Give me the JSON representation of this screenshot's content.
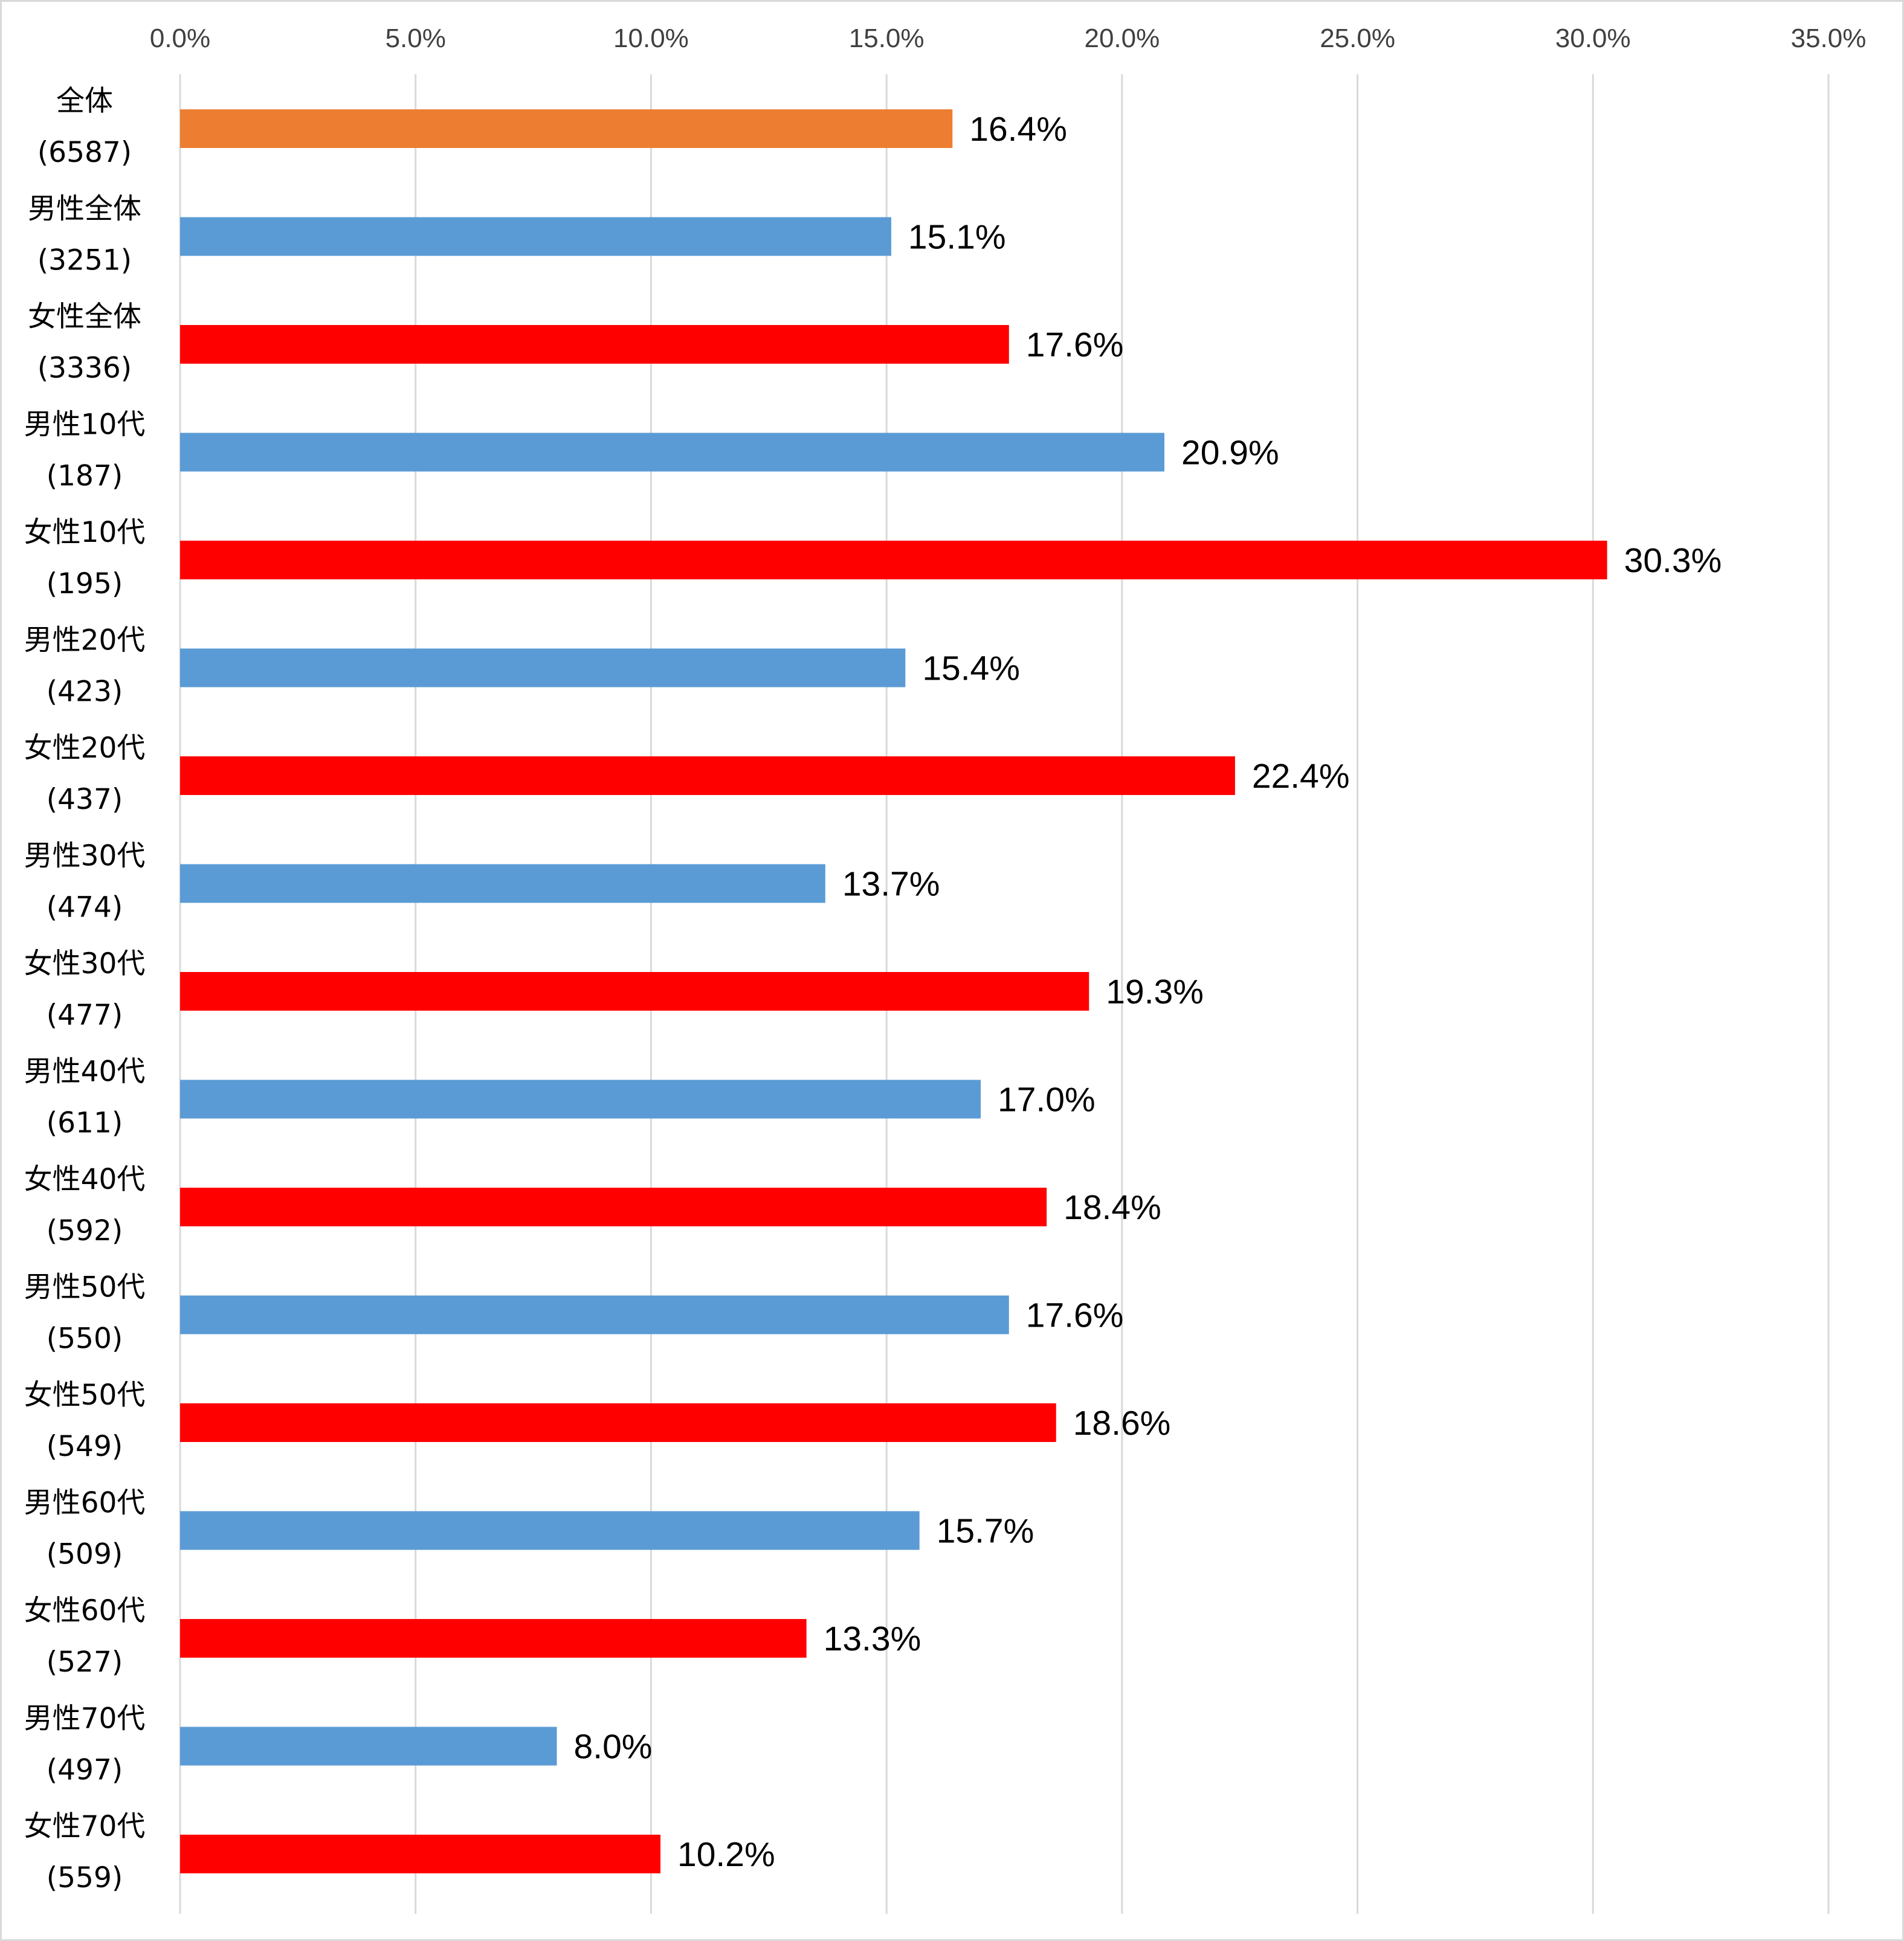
{
  "chart_data": {
    "type": "bar",
    "orientation": "horizontal",
    "title": "",
    "xlabel": "",
    "ylabel": "",
    "xlim": [
      0,
      35
    ],
    "x_ticks": [
      "0.0%",
      "5.0%",
      "10.0%",
      "15.0%",
      "20.0%",
      "25.0%",
      "30.0%",
      "35.0%"
    ],
    "x_axis_position": "top",
    "grid": "vertical",
    "legend": "none",
    "categories": [
      {
        "label": "全体",
        "n": "(6587)"
      },
      {
        "label": "男性全体",
        "n": "(3251)"
      },
      {
        "label": "女性全体",
        "n": "(3336)"
      },
      {
        "label": "男性10代",
        "n": "(187)"
      },
      {
        "label": "女性10代",
        "n": "(195)"
      },
      {
        "label": "男性20代",
        "n": "(423)"
      },
      {
        "label": "女性20代",
        "n": "(437)"
      },
      {
        "label": "男性30代",
        "n": "(474)"
      },
      {
        "label": "女性30代",
        "n": "(477)"
      },
      {
        "label": "男性40代",
        "n": "(611)"
      },
      {
        "label": "女性40代",
        "n": "(592)"
      },
      {
        "label": "男性50代",
        "n": "(550)"
      },
      {
        "label": "女性50代",
        "n": "(549)"
      },
      {
        "label": "男性60代",
        "n": "(509)"
      },
      {
        "label": "女性60代",
        "n": "(527)"
      },
      {
        "label": "男性70代",
        "n": "(497)"
      },
      {
        "label": "女性70代",
        "n": "(559)"
      }
    ],
    "values": [
      16.4,
      15.1,
      17.6,
      20.9,
      30.3,
      15.4,
      22.4,
      13.7,
      19.3,
      17.0,
      18.4,
      17.6,
      18.6,
      15.7,
      13.3,
      8.0,
      10.2
    ],
    "value_labels": [
      "16.4%",
      "15.1%",
      "17.6%",
      "20.9%",
      "30.3%",
      "15.4%",
      "22.4%",
      "13.7%",
      "19.3%",
      "17.0%",
      "18.4%",
      "17.6%",
      "18.6%",
      "15.7%",
      "13.3%",
      "8.0%",
      "10.2%"
    ],
    "bar_color_groups": [
      "total",
      "male",
      "female",
      "male",
      "female",
      "male",
      "female",
      "male",
      "female",
      "male",
      "female",
      "male",
      "female",
      "male",
      "female",
      "male",
      "female"
    ],
    "colors": {
      "total": "#ED7D31",
      "male": "#5B9BD5",
      "female": "#FF0000",
      "grid": "#D9D9D9"
    }
  }
}
